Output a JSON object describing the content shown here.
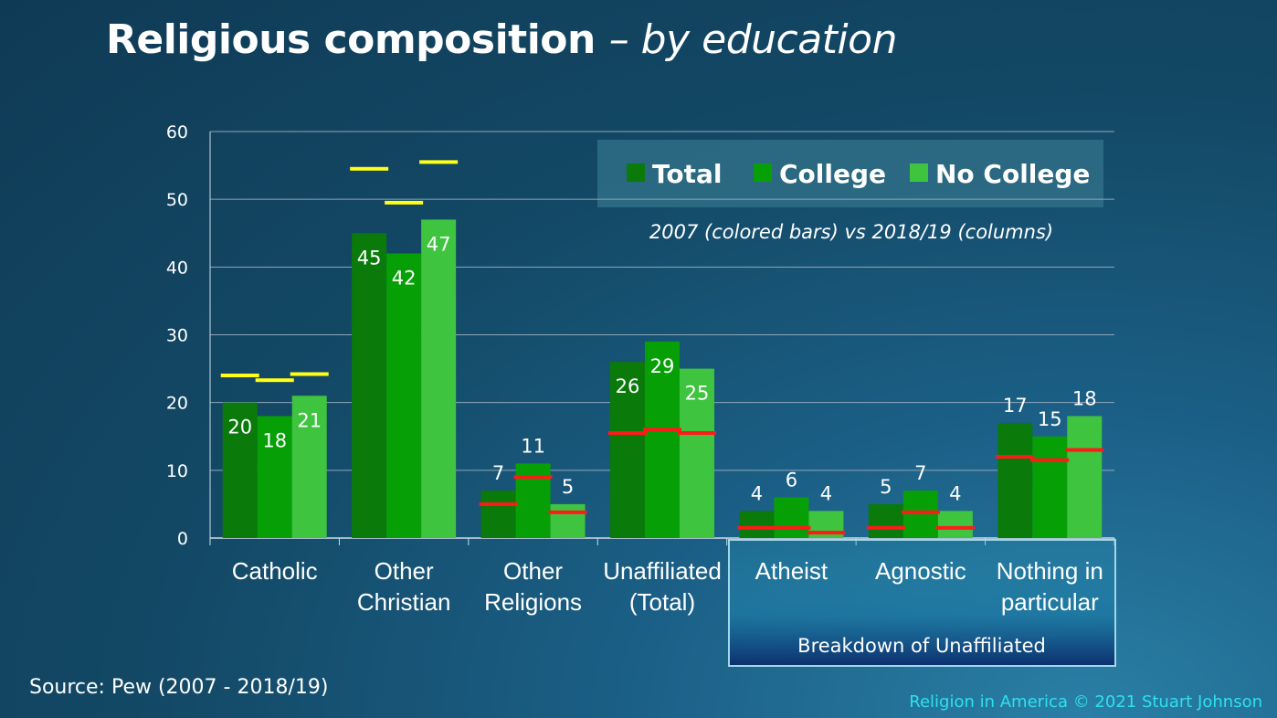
{
  "title": {
    "main": "Religious composition",
    "sub": "– by education"
  },
  "source": "Source: Pew (2007 - 2018/19)",
  "credit": "Religion in America © 2021 Stuart Johnson",
  "note": "2007 (colored bars) vs 2018/19 (columns)",
  "breakdown_label": "Breakdown of Unaffiliated",
  "colors": {
    "total": "#0a7a0a",
    "college": "#06a006",
    "no_college": "#3ec43e",
    "marker_2007_main": "#ffff1a",
    "marker_2007_unaffiliated": "#ff1a1a",
    "gridline": "#8fa7b8",
    "legend_box": "#2f6f86",
    "breakdown_box_border": "#9fd8e8"
  },
  "chart_data": {
    "type": "bar",
    "categories": [
      [
        "Catholic"
      ],
      [
        "Other",
        "Christian"
      ],
      [
        "Other",
        "Religions"
      ],
      [
        "Unaffiliated",
        "(Total)"
      ],
      [
        "Atheist"
      ],
      [
        "Agnostic"
      ],
      [
        "Nothing in",
        "particular"
      ]
    ],
    "ylim": [
      0,
      60
    ],
    "yticks": [
      0,
      10,
      20,
      30,
      40,
      50,
      60
    ],
    "grid": true,
    "legend_position": "top-right",
    "series": [
      {
        "name": "Total",
        "values": [
          20,
          45,
          7,
          26,
          4,
          5,
          17
        ],
        "values_2007": [
          24,
          54.5,
          5,
          15.5,
          1.5,
          1.5,
          12
        ]
      },
      {
        "name": "College",
        "values": [
          18,
          42,
          11,
          29,
          6,
          7,
          15
        ],
        "values_2007": [
          23.3,
          49.5,
          9,
          16,
          1.5,
          3.8,
          11.5
        ]
      },
      {
        "name": "No College",
        "values": [
          21,
          47,
          5,
          25,
          4,
          4,
          18
        ],
        "values_2007": [
          24.2,
          55.5,
          3.8,
          15.5,
          0.8,
          1.5,
          13
        ]
      }
    ]
  }
}
